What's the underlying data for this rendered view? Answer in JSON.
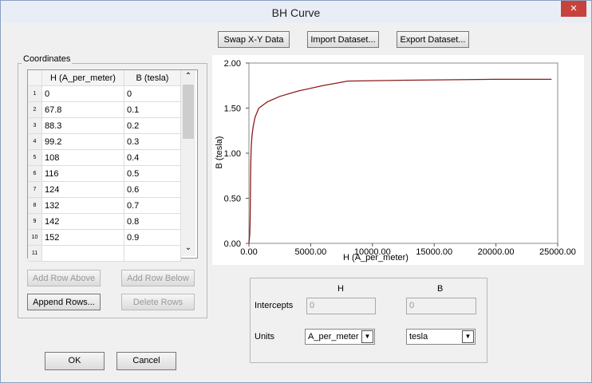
{
  "window": {
    "title": "BH Curve",
    "close": "×"
  },
  "toolbar": {
    "swap": "Swap X-Y Data",
    "import": "Import Dataset...",
    "export": "Export Dataset..."
  },
  "coordinates": {
    "label": "Coordinates",
    "columns": [
      "H (A_per_meter)",
      "B (tesla)"
    ],
    "rows": [
      [
        "1",
        "0",
        "0"
      ],
      [
        "2",
        "67.8",
        "0.1"
      ],
      [
        "3",
        "88.3",
        "0.2"
      ],
      [
        "4",
        "99.2",
        "0.3"
      ],
      [
        "5",
        "108",
        "0.4"
      ],
      [
        "6",
        "116",
        "0.5"
      ],
      [
        "7",
        "124",
        "0.6"
      ],
      [
        "8",
        "132",
        "0.7"
      ],
      [
        "9",
        "142",
        "0.8"
      ],
      [
        "10",
        "152",
        "0.9"
      ],
      [
        "11"
      ]
    ],
    "buttons": {
      "add_above": "Add Row Above",
      "add_below": "Add Row Below",
      "append": "Append Rows...",
      "delete": "Delete Rows"
    }
  },
  "dialog_buttons": {
    "ok": "OK",
    "cancel": "Cancel"
  },
  "intercepts": {
    "h_header": "H",
    "b_header": "B",
    "label": "Intercepts",
    "h_value": "0",
    "b_value": "0",
    "units_label": "Units",
    "h_units": "A_per_meter",
    "b_units": "tesla"
  },
  "chart_data": {
    "type": "line",
    "x_label": "H (A_per_meter)",
    "y_label": "B (tesla)",
    "color": "#8b1a1a",
    "x": [
      0,
      67.8,
      88.3,
      99.2,
      108,
      116,
      124,
      132,
      142,
      152,
      170,
      200,
      250,
      350,
      500,
      800,
      1500,
      2500,
      4000,
      6000,
      8000,
      13000,
      20000,
      24500
    ],
    "values": [
      0,
      0.1,
      0.2,
      0.3,
      0.4,
      0.5,
      0.6,
      0.7,
      0.8,
      0.9,
      1.0,
      1.1,
      1.2,
      1.3,
      1.4,
      1.5,
      1.57,
      1.63,
      1.69,
      1.75,
      1.8,
      1.81,
      1.82,
      1.82
    ],
    "xlim": [
      0,
      25000
    ],
    "ylim": [
      0,
      2
    ],
    "xticks": [
      {
        "value": 0,
        "label": "0.00"
      },
      {
        "value": 5000,
        "label": "5000.00"
      },
      {
        "value": 10000,
        "label": "10000.00"
      },
      {
        "value": 15000,
        "label": "15000.00"
      },
      {
        "value": 20000,
        "label": "20000.00"
      },
      {
        "value": 25000,
        "label": "25000.00"
      }
    ],
    "yticks": [
      {
        "value": 0,
        "label": "0.00"
      },
      {
        "value": 0.5,
        "label": "0.50"
      },
      {
        "value": 1,
        "label": "1.00"
      },
      {
        "value": 1.5,
        "label": "1.50"
      },
      {
        "value": 2,
        "label": "2.00"
      }
    ]
  }
}
